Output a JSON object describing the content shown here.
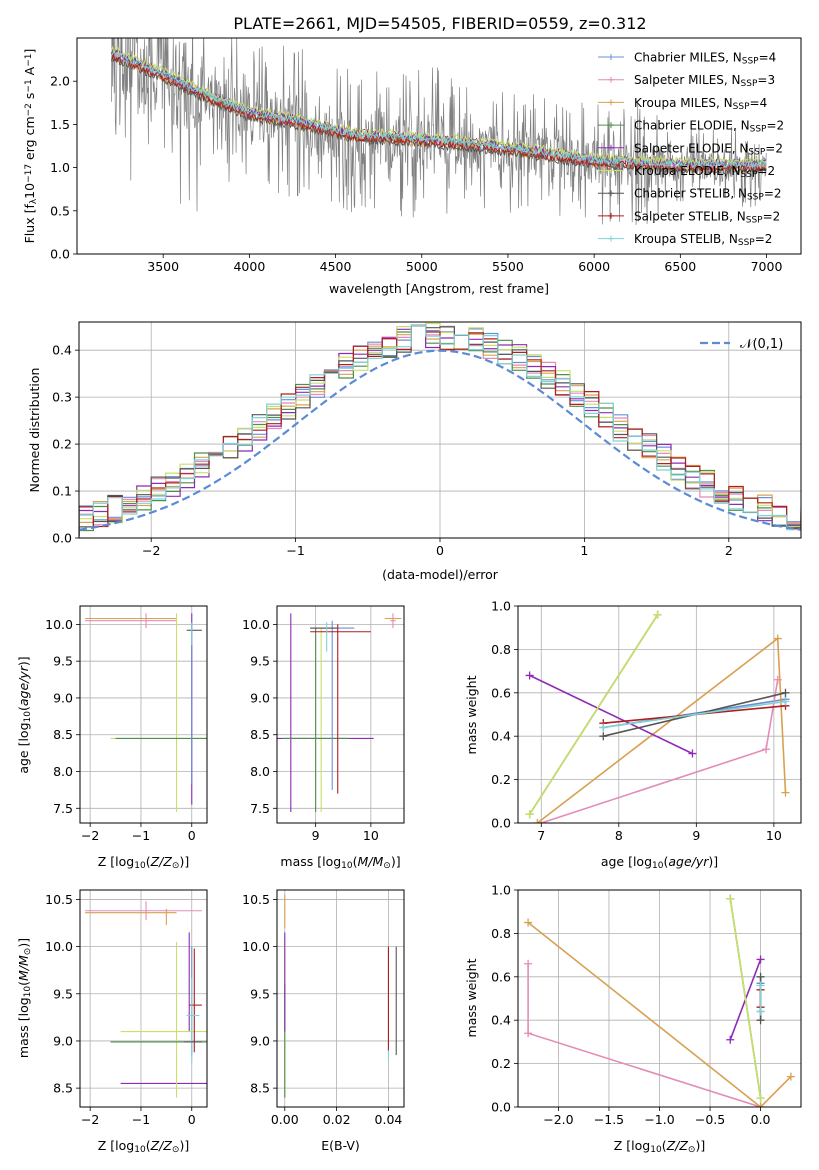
{
  "figure": {
    "title": "PLATE=2661, MJD=54505, FIBERID=0559, z=0.312"
  },
  "colors": {
    "Chabrier MILES": "#6b8fd6",
    "Salpeter MILES": "#e48bb8",
    "Kroupa MILES": "#d9a050",
    "Chabrier ELODIE": "#4d8f4d",
    "Salpeter ELODIE": "#8e2bb4",
    "Kroupa ELODIE": "#c8e06a",
    "Chabrier STELIB": "#555555",
    "Salpeter STELIB": "#b01f1f",
    "Kroupa STELIB": "#7dd3d6",
    "data": "#7f7f7f",
    "model_orange": "#e07b39",
    "normal": "#5b8bd6",
    "grid": "#b0b0b0"
  },
  "chart_data": [
    {
      "id": "spectrum",
      "type": "line",
      "title": "PLATE=2661, MJD=54505, FIBERID=0559, z=0.312",
      "xlabel": "wavelength [Angstrom, rest frame]",
      "ylabel": "Flux [f_λ 10^-17 erg cm^-2 s^-1 A^-1]",
      "xlim": [
        3000,
        7200
      ],
      "ylim": [
        0,
        2.5
      ],
      "xticks": [
        3500,
        4000,
        4500,
        5000,
        5500,
        6000,
        6500,
        7000
      ],
      "yticks": [
        0.0,
        0.5,
        1.0,
        1.5,
        2.0
      ],
      "grid": false,
      "legend": "upper right",
      "legend_entries": [
        "Chabrier MILES, N_SSP=4",
        "Salpeter MILES, N_SSP=3",
        "Kroupa MILES, N_SSP=4",
        "Chabrier ELODIE, N_SSP=2",
        "Salpeter ELODIE, N_SSP=2",
        "Kroupa ELODIE, N_SSP=2",
        "Chabrier STELIB, N_SSP=2",
        "Salpeter STELIB, N_SSP=2",
        "Kroupa STELIB, N_SSP=2"
      ],
      "model_trend": {
        "x": [
          3200,
          3500,
          3700,
          4000,
          4300,
          4600,
          5000,
          5500,
          6000,
          6500,
          7000
        ],
        "y": [
          2.3,
          2.05,
          1.85,
          1.6,
          1.5,
          1.35,
          1.3,
          1.2,
          1.05,
          1.0,
          1.0
        ]
      }
    },
    {
      "id": "residuals",
      "type": "line",
      "xlabel": "(data-model)/error",
      "ylabel": "Normed distribution",
      "xlim": [
        -2.5,
        2.5
      ],
      "ylim": [
        0,
        0.46
      ],
      "xticks": [
        -2,
        -1,
        0,
        1,
        2
      ],
      "yticks": [
        0.0,
        0.1,
        0.2,
        0.3,
        0.4
      ],
      "grid": true,
      "legend": "upper right",
      "legend_entries": [
        "𝒩(0,1)"
      ],
      "normal": {
        "mean": 0,
        "sigma": 1
      }
    },
    {
      "id": "age_vs_Z",
      "type": "scatter",
      "xlabel": "Z [log10(Z/Z⊙)]",
      "ylabel": "age  [log10(age/yr)]",
      "xlim": [
        -2.2,
        0.3
      ],
      "ylim": [
        7.3,
        10.25
      ],
      "xticks": [
        -2,
        -1,
        0
      ],
      "yticks": [
        7.5,
        8.0,
        8.5,
        9.0,
        9.5,
        10.0
      ],
      "grid": true
    },
    {
      "id": "age_vs_mass",
      "type": "scatter",
      "xlabel": "mass [log10(M/M⊙)]",
      "xlim": [
        8.3,
        10.6
      ],
      "ylim": [
        7.3,
        10.25
      ],
      "xticks": [
        9,
        10
      ],
      "yticks": [
        7.5,
        8.0,
        8.5,
        9.0,
        9.5,
        10.0
      ],
      "grid": true
    },
    {
      "id": "weight_vs_age",
      "type": "line",
      "xlabel": "age  [log10(age/yr)]",
      "ylabel": "mass weight",
      "xlim": [
        6.7,
        10.35
      ],
      "ylim": [
        0,
        1.0
      ],
      "xticks": [
        7,
        8,
        9,
        10
      ],
      "yticks": [
        0.0,
        0.2,
        0.4,
        0.6,
        0.8,
        1.0
      ],
      "grid": true,
      "series": [
        {
          "model": "Chabrier MILES",
          "x": [
            7.8,
            10.15
          ],
          "y": [
            0.44,
            0.57
          ]
        },
        {
          "model": "Salpeter MILES",
          "x": [
            7.0,
            9.9,
            10.05
          ],
          "y": [
            0.0,
            0.34,
            0.66
          ]
        },
        {
          "model": "Kroupa MILES",
          "x": [
            6.95,
            10.05,
            10.15
          ],
          "y": [
            0.0,
            0.85,
            0.14
          ]
        },
        {
          "model": "Chabrier ELODIE",
          "x": [
            6.85,
            8.5
          ],
          "y": [
            0.04,
            0.96
          ]
        },
        {
          "model": "Salpeter ELODIE",
          "x": [
            6.85,
            8.95
          ],
          "y": [
            0.68,
            0.32
          ]
        },
        {
          "model": "Kroupa ELODIE",
          "x": [
            6.85,
            8.5
          ],
          "y": [
            0.04,
            0.96
          ]
        },
        {
          "model": "Chabrier STELIB",
          "x": [
            7.8,
            10.15
          ],
          "y": [
            0.4,
            0.6
          ]
        },
        {
          "model": "Salpeter STELIB",
          "x": [
            7.8,
            10.15
          ],
          "y": [
            0.46,
            0.54
          ]
        },
        {
          "model": "Kroupa STELIB",
          "x": [
            7.8,
            10.15
          ],
          "y": [
            0.44,
            0.56
          ]
        }
      ]
    },
    {
      "id": "mass_vs_Z",
      "type": "scatter",
      "xlabel": "Z [log10(Z/Z⊙)]",
      "ylabel": "mass [log10(M/M⊙)]",
      "xlim": [
        -2.2,
        0.3
      ],
      "ylim": [
        8.3,
        10.6
      ],
      "xticks": [
        -2,
        -1,
        0
      ],
      "yticks": [
        8.5,
        9.0,
        9.5,
        10.0,
        10.5
      ],
      "grid": true
    },
    {
      "id": "mass_vs_ebv",
      "type": "scatter",
      "xlabel": "E(B-V)",
      "xlim": [
        -0.003,
        0.046
      ],
      "ylim": [
        8.3,
        10.6
      ],
      "xticks": [
        0.0,
        0.02,
        0.04
      ],
      "yticks": [
        8.5,
        9.0,
        9.5,
        10.0,
        10.5
      ],
      "grid": true
    },
    {
      "id": "weight_vs_Z",
      "type": "line",
      "xlabel": "Z [log10(Z/Z⊙)]",
      "ylabel": "mass weight",
      "xlim": [
        -2.4,
        0.4
      ],
      "ylim": [
        0,
        1.0
      ],
      "xticks": [
        -2.0,
        -1.5,
        -1.0,
        -0.5,
        0.0
      ],
      "yticks": [
        0.0,
        0.2,
        0.4,
        0.6,
        0.8,
        1.0
      ],
      "grid": true,
      "series": [
        {
          "model": "Chabrier MILES",
          "x": [
            0.0,
            0.0
          ],
          "y": [
            0.44,
            0.57
          ]
        },
        {
          "model": "Salpeter MILES",
          "x": [
            -2.3,
            -2.3,
            0.0
          ],
          "y": [
            0.66,
            0.34,
            0.0
          ]
        },
        {
          "model": "Kroupa MILES",
          "x": [
            -2.3,
            0.0,
            0.3
          ],
          "y": [
            0.85,
            0.0,
            0.14
          ]
        },
        {
          "model": "Chabrier ELODIE",
          "x": [
            -0.3,
            0.0
          ],
          "y": [
            0.96,
            0.04
          ]
        },
        {
          "model": "Salpeter ELODIE",
          "x": [
            -0.3,
            0.0
          ],
          "y": [
            0.31,
            0.68
          ]
        },
        {
          "model": "Kroupa ELODIE",
          "x": [
            -0.3,
            0.0
          ],
          "y": [
            0.96,
            0.04
          ]
        },
        {
          "model": "Chabrier STELIB",
          "x": [
            0.0,
            0.0
          ],
          "y": [
            0.4,
            0.6
          ]
        },
        {
          "model": "Salpeter STELIB",
          "x": [
            0.0,
            0.0
          ],
          "y": [
            0.46,
            0.54
          ]
        },
        {
          "model": "Kroupa STELIB",
          "x": [
            0.0,
            0.0
          ],
          "y": [
            0.44,
            0.56
          ]
        }
      ]
    }
  ]
}
